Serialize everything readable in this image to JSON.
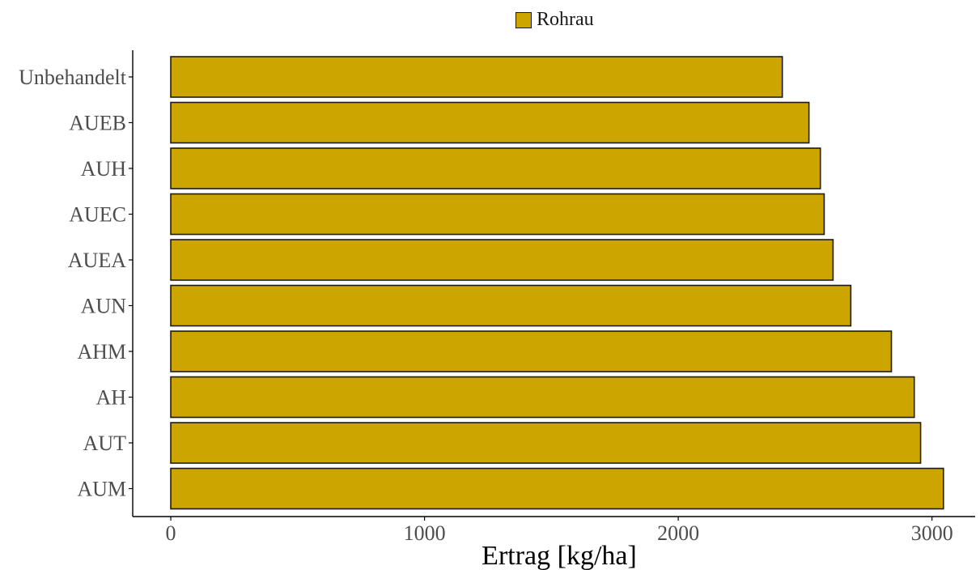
{
  "colors": {
    "bar_fill": "#CCA500",
    "bar_stroke": "#1a1a1a",
    "axis": "#000000",
    "tick_label": "#4d4d4d"
  },
  "legend": {
    "label": "Rohrau",
    "placement": "top"
  },
  "chart_data": {
    "type": "bar",
    "orientation": "horizontal",
    "categories": [
      "Unbehandelt",
      "AUEB",
      "AUH",
      "AUEC",
      "AUEA",
      "AUN",
      "AHM",
      "AH",
      "AUT",
      "AUM"
    ],
    "series": [
      {
        "name": "Rohrau",
        "values": [
          2410,
          2515,
          2560,
          2575,
          2610,
          2680,
          2840,
          2930,
          2955,
          3045
        ]
      }
    ],
    "xlabel": "Ertrag [kg/ha]",
    "ylabel": "",
    "xlim": [
      -150,
      3170
    ],
    "xticks": [
      "0",
      "1000",
      "2000",
      "3000"
    ],
    "grid": false
  }
}
